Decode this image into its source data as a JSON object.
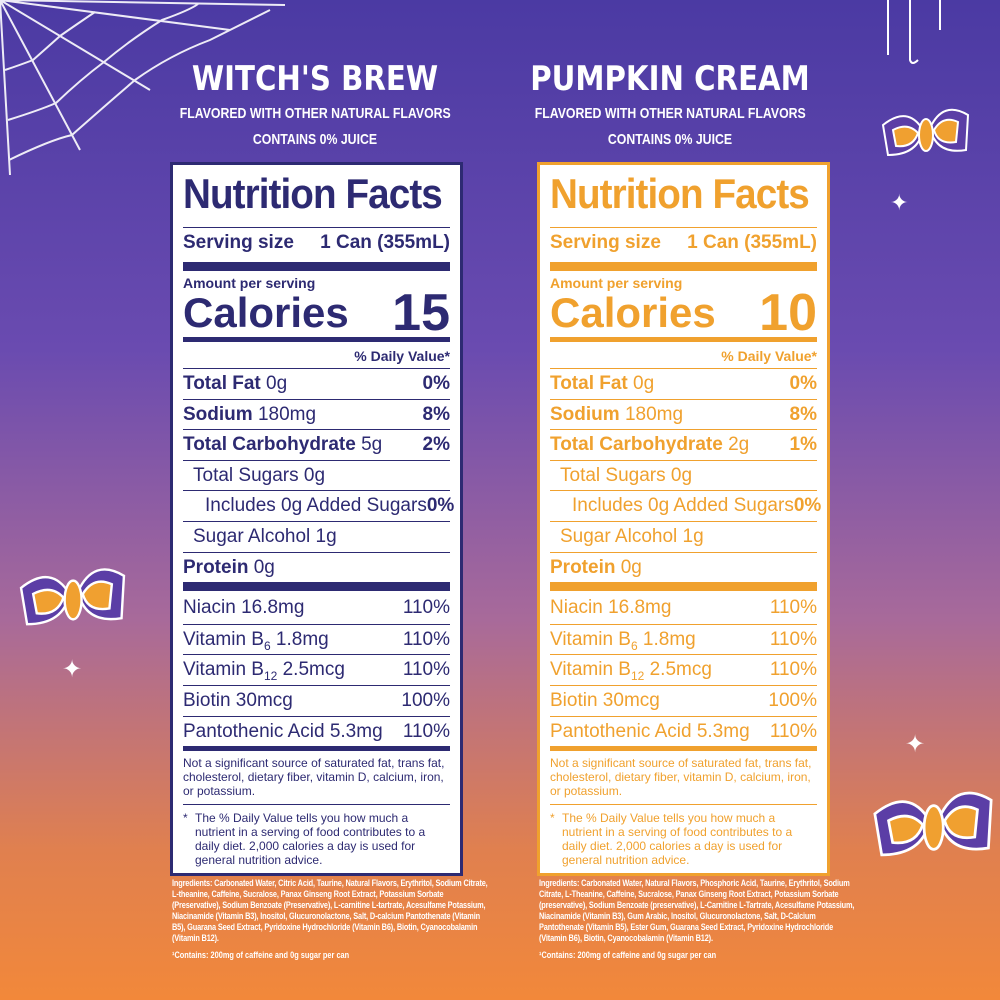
{
  "colors": {
    "left": "#2d2a72",
    "right": "#f0a12e"
  },
  "products": [
    {
      "name": "WITCH'S BREW",
      "flavor_note": "FLAVORED WITH OTHER NATURAL FLAVORS",
      "juice_note": "CONTAINS 0% JUICE",
      "label": {
        "title": "Nutrition Facts",
        "serving_label": "Serving size",
        "serving_value": "1 Can (355mL)",
        "amount_label": "Amount per serving",
        "calories_label": "Calories",
        "calories_value": "15",
        "dv_header": "% Daily Value*",
        "nutrients": [
          {
            "name": "Total Fat",
            "amount": "0g",
            "dv": "0%",
            "bold": true,
            "indent": 0
          },
          {
            "name": "Sodium",
            "amount": "180mg",
            "dv": "8%",
            "bold": true,
            "indent": 0
          },
          {
            "name": "Total Carbohydrate",
            "amount": "5g",
            "dv": "2%",
            "bold": true,
            "indent": 0
          },
          {
            "name": "Total Sugars 0g",
            "amount": "",
            "dv": "",
            "bold": false,
            "indent": 1
          },
          {
            "name": "Includes 0g Added Sugars",
            "amount": "",
            "dv": "0%",
            "bold": false,
            "indent": 2
          },
          {
            "name": "Sugar Alcohol 1g",
            "amount": "",
            "dv": "",
            "bold": false,
            "indent": 1
          },
          {
            "name": "Protein",
            "amount": "0g",
            "dv": "",
            "bold": true,
            "indent": 0
          }
        ],
        "vitamins": [
          {
            "name": "Niacin 16.8mg",
            "dv": "110%"
          },
          {
            "name": "Vitamin B",
            "sub": "6",
            "rest": " 1.8mg",
            "dv": "110%"
          },
          {
            "name": "Vitamin B",
            "sub": "12",
            "rest": " 2.5mcg",
            "dv": "110%"
          },
          {
            "name": "Biotin 30mcg",
            "dv": "100%"
          },
          {
            "name": "Pantothenic Acid 5.3mg",
            "dv": "110%"
          }
        ],
        "footnote1": "Not a significant source of saturated fat, trans fat, cholesterol, dietary fiber, vitamin D, calcium, iron, or potassium.",
        "footnote2_mark": "*",
        "footnote2": "The % Daily Value tells you how much a nutrient in a serving of food contributes to a daily diet. 2,000 calories a day is used for general nutrition advice."
      },
      "ingredients": "Ingredients: Carbonated Water, Citric Acid, Taurine, Natural Flavors, Erythritol, Sodium Citrate, L-theanine, Caffeine, Sucralose, Panax Ginseng Root Extract, Potassium Sorbate (Preservative), Sodium Benzoate (Preservative), L-carnitine L-tartrate, Acesulfame Potassium, Niacinamide (Vitamin B3), Inositol, Glucuronolactone, Salt, D-calcium Pantothenate (Vitamin B5), Guarana Seed Extract, Pyridoxine Hydrochloride (Vitamin B6), Biotin, Cyanocobalamin (Vitamin B12).",
      "contains": "¹Contains: 200mg of caffeine and 0g sugar per can"
    },
    {
      "name": "PUMPKIN CREAM",
      "flavor_note": "FLAVORED WITH OTHER NATURAL FLAVORS",
      "juice_note": "CONTAINS 0% JUICE",
      "label": {
        "title": "Nutrition Facts",
        "serving_label": "Serving size",
        "serving_value": "1 Can (355mL)",
        "amount_label": "Amount per serving",
        "calories_label": "Calories",
        "calories_value": "10",
        "dv_header": "% Daily Value*",
        "nutrients": [
          {
            "name": "Total Fat",
            "amount": "0g",
            "dv": "0%",
            "bold": true,
            "indent": 0
          },
          {
            "name": "Sodium",
            "amount": "180mg",
            "dv": "8%",
            "bold": true,
            "indent": 0
          },
          {
            "name": "Total Carbohydrate",
            "amount": "2g",
            "dv": "1%",
            "bold": true,
            "indent": 0
          },
          {
            "name": "Total Sugars 0g",
            "amount": "",
            "dv": "",
            "bold": false,
            "indent": 1
          },
          {
            "name": "Includes 0g Added Sugars",
            "amount": "",
            "dv": "0%",
            "bold": false,
            "indent": 2
          },
          {
            "name": "Sugar Alcohol 1g",
            "amount": "",
            "dv": "",
            "bold": false,
            "indent": 1
          },
          {
            "name": "Protein",
            "amount": "0g",
            "dv": "",
            "bold": true,
            "indent": 0
          }
        ],
        "vitamins": [
          {
            "name": "Niacin 16.8mg",
            "dv": "110%"
          },
          {
            "name": "Vitamin B",
            "sub": "6",
            "rest": " 1.8mg",
            "dv": "110%"
          },
          {
            "name": "Vitamin B",
            "sub": "12",
            "rest": " 2.5mcg",
            "dv": "110%"
          },
          {
            "name": "Biotin 30mcg",
            "dv": "100%"
          },
          {
            "name": "Pantothenic Acid 5.3mg",
            "dv": "110%"
          }
        ],
        "footnote1": "Not a significant source of saturated fat, trans fat, cholesterol, dietary fiber, vitamin D, calcium, iron, or potassium.",
        "footnote2_mark": "*",
        "footnote2": "The % Daily Value tells you how much a nutrient in a serving of food contributes to a daily diet. 2,000 calories a day is used for general nutrition advice."
      },
      "ingredients": "Ingredients: Carbonated Water, Natural Flavors, Phosphoric Acid, Taurine, Erythritol, Sodium Citrate, L-Theanine, Caffeine, Sucralose, Panax Ginseng Root Extract, Potassium Sorbate (preservative), Sodium Benzoate (preservative), L-Carnitine L-Tartrate, Acesulfame Potassium, Niacinamide (Vitamin B3), Gum Arabic, Inositol, Glucuronolactone, Salt, D-Calcium Pantothenate (Vitamin B5), Ester Gum, Guarana Seed Extract, Pyridoxine Hydrochloride (Vitamin B6), Biotin, Cyanocobalamin (Vitamin B12).",
      "contains": "¹Contains: 200mg of caffeine and 0g sugar per can"
    }
  ],
  "decorations": [
    "spiderweb-icon",
    "moth-icon",
    "sparkle-icon"
  ]
}
